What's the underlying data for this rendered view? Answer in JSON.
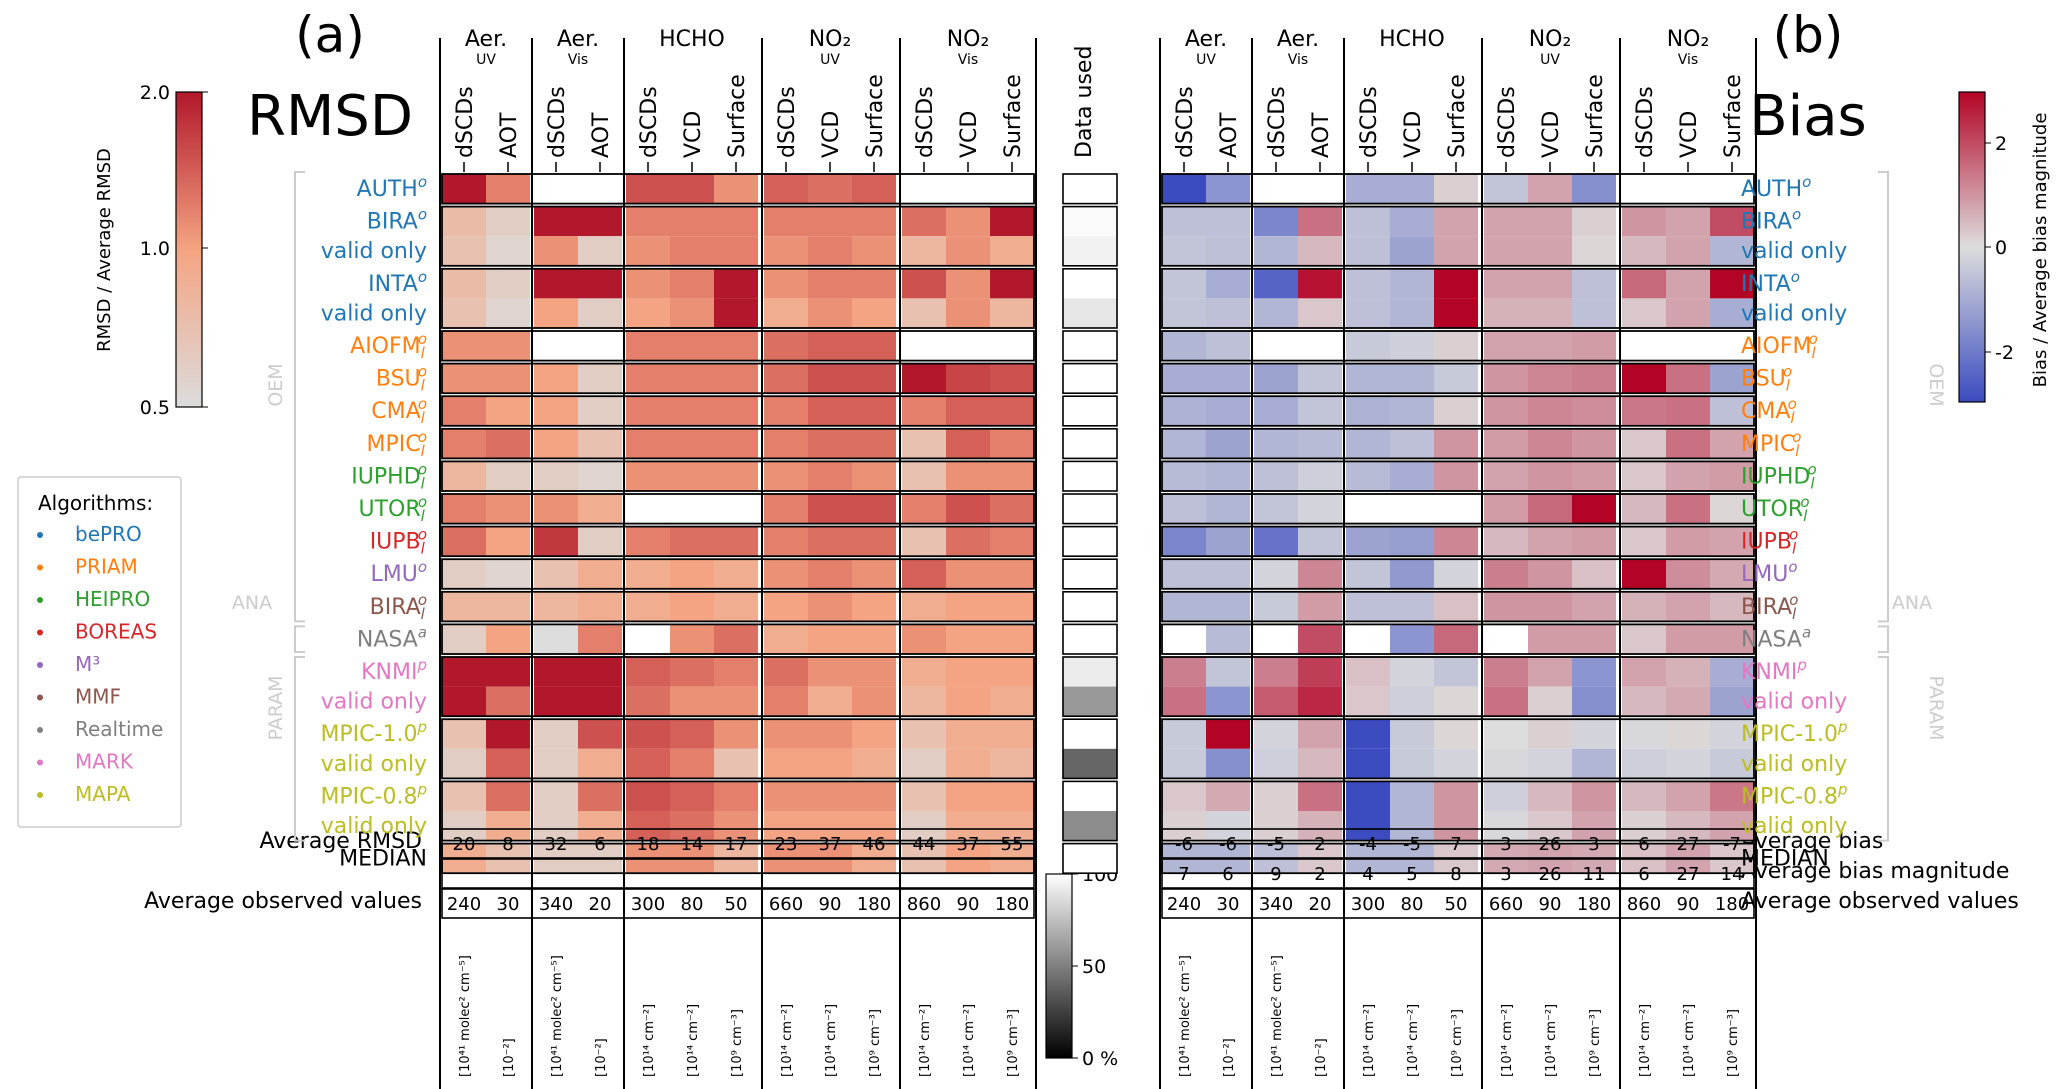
{
  "panels": {
    "a": {
      "letter": "(a)",
      "title": "RMSD"
    },
    "b": {
      "letter": "(b)",
      "title": "Bias"
    }
  },
  "data_used_header": "Data used",
  "groups": [
    {
      "name": "Aer.",
      "sub": "UV",
      "cols": [
        "dSCDs",
        "AOT"
      ],
      "units": [
        "[10⁴¹ molec² cm⁻⁵]",
        "[10⁻²]"
      ]
    },
    {
      "name": "Aer.",
      "sub": "Vis",
      "cols": [
        "dSCDs",
        "AOT"
      ],
      "units": [
        "[10⁴¹ molec² cm⁻⁵]",
        "[10⁻²]"
      ]
    },
    {
      "name": "HCHO",
      "sub": "",
      "cols": [
        "dSCDs",
        "VCD",
        "Surface"
      ],
      "units": [
        "[10¹⁴ cm⁻²]",
        "[10¹⁴ cm⁻²]",
        "[10⁹ cm⁻³]"
      ]
    },
    {
      "name": "NO₂",
      "sub": "UV",
      "cols": [
        "dSCDs",
        "VCD",
        "Surface"
      ],
      "units": [
        "[10¹⁴ cm⁻²]",
        "[10¹⁴ cm⁻²]",
        "[10⁹ cm⁻³]"
      ]
    },
    {
      "name": "NO₂",
      "sub": "Vis",
      "cols": [
        "dSCDs",
        "VCD",
        "Surface"
      ],
      "units": [
        "[10¹⁴ cm⁻²]",
        "[10¹⁴ cm⁻²]",
        "[10⁹ cm⁻³]"
      ]
    }
  ],
  "rows": [
    {
      "label": "AUTH",
      "sup": "o",
      "sub": "",
      "color": "#1f77b4",
      "block": 0
    },
    {
      "label": "BIRA",
      "sup": "o",
      "sub": "",
      "color": "#1f77b4",
      "block": 1
    },
    {
      "label": "valid only",
      "sup": "",
      "sub": "",
      "color": "#1f77b4",
      "block": 1
    },
    {
      "label": "INTA",
      "sup": "o",
      "sub": "",
      "color": "#1f77b4",
      "block": 2
    },
    {
      "label": "valid only",
      "sup": "",
      "sub": "",
      "color": "#1f77b4",
      "block": 2
    },
    {
      "label": "AIOFM",
      "sup": "o",
      "sub": "l",
      "color": "#ff7f0e",
      "block": 3
    },
    {
      "label": "BSU",
      "sup": "o",
      "sub": "l",
      "color": "#ff7f0e",
      "block": 4
    },
    {
      "label": "CMA",
      "sup": "o",
      "sub": "l",
      "color": "#ff7f0e",
      "block": 5
    },
    {
      "label": "MPIC",
      "sup": "o",
      "sub": "l",
      "color": "#ff7f0e",
      "block": 6
    },
    {
      "label": "IUPHD",
      "sup": "o",
      "sub": "l",
      "color": "#2ca02c",
      "block": 7
    },
    {
      "label": "UTOR",
      "sup": "o",
      "sub": "l",
      "color": "#2ca02c",
      "block": 8
    },
    {
      "label": "IUPB",
      "sup": "o",
      "sub": "l",
      "color": "#d62728",
      "block": 9
    },
    {
      "label": "LMU",
      "sup": "o",
      "sub": "",
      "color": "#9467bd",
      "block": 10
    },
    {
      "label": "BIRA",
      "sup": "o",
      "sub": "l",
      "color": "#8c564b",
      "block": 11
    },
    {
      "label": "NASA",
      "sup": "a",
      "sub": "",
      "color": "#7f7f7f",
      "block": 12
    },
    {
      "label": "KNMI",
      "sup": "p",
      "sub": "",
      "color": "#e377c2",
      "block": 13
    },
    {
      "label": "valid only",
      "sup": "",
      "sub": "",
      "color": "#e377c2",
      "block": 13
    },
    {
      "label": "MPIC-1.0",
      "sup": "p",
      "sub": "",
      "color": "#bcbd22",
      "block": 14
    },
    {
      "label": "valid only",
      "sup": "",
      "sub": "",
      "color": "#bcbd22",
      "block": 14
    },
    {
      "label": "MPIC-0.8",
      "sup": "p",
      "sub": "",
      "color": "#bcbd22",
      "block": 15
    },
    {
      "label": "valid only",
      "sup": "",
      "sub": "",
      "color": "#bcbd22",
      "block": 15
    },
    {
      "label": "MEDIAN",
      "sup": "",
      "sub": "",
      "color": "#000000",
      "block": 16
    }
  ],
  "bracket_labels": {
    "oem": "OEM",
    "ana": "ANA",
    "param": "PARAM"
  },
  "legend": {
    "title": "Algorithms:",
    "items": [
      {
        "name": "bePRO",
        "color": "#1f77b4"
      },
      {
        "name": "PRIAM",
        "color": "#ff7f0e"
      },
      {
        "name": "HEIPRO",
        "color": "#2ca02c"
      },
      {
        "name": "BOREAS",
        "color": "#d62728"
      },
      {
        "name": "M³",
        "color": "#9467bd"
      },
      {
        "name": "MMF",
        "color": "#8c564b"
      },
      {
        "name": "Realtime",
        "color": "#7f7f7f"
      },
      {
        "name": "MARK",
        "color": "#e377c2"
      },
      {
        "name": "MAPA",
        "color": "#bcbd22"
      }
    ]
  },
  "colorbars": {
    "rmsd": {
      "label": "RMSD / Average RMSD",
      "ticks": [
        "2.0",
        "1.0",
        "0.5"
      ],
      "low": "#dcdcdc",
      "high": "#b2182b"
    },
    "bias": {
      "label": "Bias / Average bias magnitude",
      "ticks": [
        "2",
        "0",
        "-2"
      ],
      "low": "#3b4cc0",
      "mid": "#dddddd",
      "high": "#b40426"
    },
    "data_used": {
      "ticks": [
        "100",
        "50",
        "0 %"
      ]
    }
  },
  "summary_rows": {
    "avg_rmsd_label": "Average RMSD",
    "avg_bias_label": "Average bias",
    "avg_bias_mag_label": "Average bias magnitude",
    "avg_obs_label": "Average observed values"
  },
  "chart_data": [
    {
      "type": "heatmap",
      "title": "RMSD",
      "columns": [
        "Aer. UV dSCDs",
        "Aer. UV AOT",
        "Aer. Vis dSCDs",
        "Aer. Vis AOT",
        "HCHO dSCDs",
        "HCHO VCD",
        "HCHO Surface",
        "NO2 UV dSCDs",
        "NO2 UV VCD",
        "NO2 UV Surface",
        "NO2 Vis dSCDs",
        "NO2 Vis VCD",
        "NO2 Vis Surface"
      ],
      "colorbar_label": "RMSD / Average RMSD",
      "color_range": [
        0.5,
        2.0
      ],
      "values": [
        [
          2.0,
          1.2,
          null,
          null,
          1.5,
          1.5,
          1.1,
          1.4,
          1.3,
          1.4,
          null,
          null,
          null
        ],
        [
          0.75,
          0.6,
          2.0,
          2.0,
          1.2,
          1.2,
          1.2,
          1.2,
          1.2,
          1.2,
          1.3,
          1.1,
          2.0
        ],
        [
          0.7,
          0.55,
          1.1,
          0.6,
          1.1,
          1.2,
          1.2,
          1.1,
          1.2,
          1.1,
          0.8,
          1.1,
          0.9
        ],
        [
          0.75,
          0.6,
          2.0,
          2.0,
          1.1,
          1.2,
          2.0,
          1.1,
          1.2,
          1.2,
          1.5,
          1.1,
          2.0
        ],
        [
          0.7,
          0.55,
          1.0,
          0.6,
          1.0,
          1.1,
          2.0,
          0.9,
          1.1,
          1.0,
          0.7,
          1.1,
          0.8
        ],
        [
          1.1,
          1.1,
          null,
          null,
          1.2,
          1.2,
          1.2,
          1.3,
          1.4,
          1.4,
          null,
          null,
          null
        ],
        [
          1.1,
          1.1,
          1.0,
          0.6,
          1.2,
          1.2,
          1.2,
          1.3,
          1.5,
          1.5,
          2.0,
          1.6,
          1.5
        ],
        [
          1.2,
          1.0,
          1.0,
          0.6,
          1.2,
          1.2,
          1.2,
          1.2,
          1.4,
          1.4,
          1.2,
          1.4,
          1.4
        ],
        [
          1.2,
          1.3,
          1.0,
          0.7,
          1.2,
          1.2,
          1.2,
          1.2,
          1.3,
          1.3,
          0.7,
          1.4,
          1.2
        ],
        [
          0.8,
          0.6,
          0.6,
          0.55,
          1.1,
          1.1,
          1.1,
          1.1,
          1.2,
          1.1,
          0.7,
          1.1,
          1.1
        ],
        [
          1.2,
          1.1,
          1.1,
          0.9,
          null,
          null,
          null,
          1.2,
          1.5,
          1.5,
          1.2,
          1.5,
          1.3
        ],
        [
          1.3,
          1.0,
          1.7,
          0.6,
          1.2,
          1.3,
          1.3,
          1.2,
          1.3,
          1.3,
          0.7,
          1.3,
          1.2
        ],
        [
          0.6,
          0.55,
          0.7,
          0.9,
          0.9,
          1.0,
          0.9,
          1.1,
          1.2,
          1.1,
          1.4,
          1.1,
          1.1
        ],
        [
          0.8,
          0.8,
          0.8,
          0.9,
          0.9,
          1.0,
          0.9,
          1.0,
          1.1,
          1.0,
          0.9,
          1.0,
          1.0
        ],
        [
          0.6,
          1.0,
          0.5,
          1.2,
          null,
          1.1,
          1.3,
          0.9,
          1.0,
          1.0,
          1.1,
          1.0,
          1.0
        ],
        [
          2.0,
          2.0,
          2.0,
          2.0,
          1.4,
          1.3,
          1.2,
          1.3,
          1.1,
          1.1,
          0.9,
          1.0,
          1.0
        ],
        [
          2.0,
          1.3,
          2.0,
          2.0,
          1.3,
          1.1,
          1.1,
          1.2,
          0.9,
          1.1,
          0.8,
          1.0,
          0.9
        ],
        [
          0.7,
          2.0,
          0.6,
          1.5,
          1.5,
          1.4,
          1.1,
          1.1,
          1.1,
          1.0,
          0.7,
          0.9,
          0.9
        ],
        [
          0.6,
          1.4,
          0.6,
          0.9,
          1.4,
          1.2,
          0.7,
          1.0,
          1.0,
          0.9,
          0.6,
          0.9,
          0.8
        ],
        [
          0.7,
          1.3,
          0.6,
          1.3,
          1.5,
          1.4,
          1.2,
          1.1,
          1.1,
          1.1,
          0.7,
          1.0,
          1.0
        ],
        [
          0.6,
          0.9,
          0.6,
          0.9,
          1.4,
          1.3,
          1.1,
          1.0,
          1.0,
          1.0,
          0.6,
          0.9,
          0.9
        ],
        [
          0.9,
          0.7,
          0.6,
          0.6,
          1.1,
          1.1,
          0.8,
          1.1,
          1.1,
          0.9,
          0.7,
          1.0,
          0.9
        ]
      ],
      "averages": [
        "20",
        "8",
        "32",
        "6",
        "18",
        "14",
        "17",
        "23",
        "37",
        "46",
        "44",
        "37",
        "55"
      ],
      "observed": [
        "240",
        "30",
        "340",
        "20",
        "300",
        "80",
        "50",
        "660",
        "90",
        "180",
        "860",
        "90",
        "180"
      ]
    },
    {
      "type": "heatmap",
      "title": "Bias",
      "columns": [
        "Aer. UV dSCDs",
        "Aer. UV AOT",
        "Aer. Vis dSCDs",
        "Aer. Vis AOT",
        "HCHO dSCDs",
        "HCHO VCD",
        "HCHO Surface",
        "NO2 UV dSCDs",
        "NO2 UV VCD",
        "NO2 UV Surface",
        "NO2 Vis dSCDs",
        "NO2 Vis VCD",
        "NO2 Vis Surface"
      ],
      "colorbar_label": "Bias / Average bias magnitude",
      "color_range": [
        -3,
        3
      ],
      "values": [
        [
          -3.0,
          -1.5,
          null,
          null,
          -1.0,
          -1.0,
          0.2,
          -0.5,
          0.8,
          -1.6,
          null,
          null,
          null
        ],
        [
          -0.6,
          -0.6,
          -1.8,
          1.5,
          -0.6,
          -1.0,
          0.8,
          0.8,
          0.8,
          0.2,
          1.0,
          0.8,
          2.0
        ],
        [
          -0.5,
          -0.6,
          -0.8,
          0.5,
          -0.6,
          -1.2,
          0.8,
          0.8,
          0.8,
          0.1,
          0.5,
          0.8,
          -0.8
        ],
        [
          -0.5,
          -1.0,
          -2.5,
          2.8,
          -0.6,
          -0.8,
          3.0,
          0.8,
          0.8,
          -0.6,
          1.6,
          0.8,
          3.0
        ],
        [
          -0.5,
          -0.6,
          -0.8,
          0.3,
          -0.6,
          -0.8,
          3.0,
          0.6,
          0.6,
          -0.6,
          0.3,
          0.8,
          -1.0
        ],
        [
          -0.8,
          -0.6,
          null,
          null,
          -0.4,
          -0.3,
          0.2,
          0.8,
          0.8,
          0.9,
          null,
          null,
          null
        ],
        [
          -1.0,
          -1.0,
          -1.2,
          -0.5,
          -0.8,
          -0.8,
          -0.4,
          1.0,
          1.2,
          1.3,
          3.0,
          1.5,
          -1.2
        ],
        [
          -0.9,
          -1.0,
          -1.0,
          -0.5,
          -0.9,
          -0.8,
          0.2,
          1.0,
          1.2,
          1.1,
          1.4,
          1.5,
          -0.6
        ],
        [
          -0.8,
          -1.2,
          -0.8,
          -0.7,
          -0.8,
          -0.6,
          1.0,
          0.9,
          1.2,
          1.0,
          0.3,
          1.5,
          0.8
        ],
        [
          -0.7,
          -0.8,
          -0.6,
          -0.3,
          -0.7,
          -1.0,
          1.0,
          0.8,
          1.0,
          0.9,
          0.3,
          0.8,
          0.9
        ],
        [
          -0.6,
          -0.8,
          -0.5,
          -0.2,
          null,
          null,
          null,
          0.9,
          1.6,
          3.0,
          0.5,
          1.5,
          0.1
        ],
        [
          -1.8,
          -1.2,
          -2.2,
          -0.5,
          -1.2,
          -1.3,
          1.2,
          0.5,
          0.8,
          0.9,
          0.3,
          0.9,
          0.8
        ],
        [
          -0.6,
          -0.6,
          -0.2,
          1.2,
          -0.5,
          -1.4,
          -0.2,
          1.3,
          1.0,
          0.4,
          3.0,
          1.1,
          0.7
        ],
        [
          -0.8,
          -0.8,
          -0.4,
          0.9,
          -0.6,
          -0.6,
          0.4,
          1.0,
          1.0,
          0.8,
          0.6,
          0.8,
          0.5
        ],
        [
          null,
          -0.7,
          null,
          2.0,
          null,
          -1.5,
          1.6,
          null,
          0.9,
          0.9,
          0.3,
          0.9,
          0.9
        ],
        [
          1.3,
          -0.5,
          1.3,
          2.2,
          0.4,
          -0.2,
          -0.5,
          1.3,
          0.8,
          -1.5,
          0.8,
          0.6,
          -1.0
        ],
        [
          1.5,
          -1.5,
          1.8,
          2.5,
          0.3,
          -0.3,
          0.1,
          1.5,
          0.2,
          -1.6,
          0.5,
          0.7,
          -1.2
        ],
        [
          -0.4,
          3.0,
          -0.2,
          0.8,
          -3.0,
          -0.4,
          0.1,
          0.0,
          0.2,
          -0.2,
          -0.1,
          0.1,
          -0.2
        ],
        [
          -0.4,
          -1.6,
          -0.3,
          0.5,
          -3.0,
          -0.4,
          -0.2,
          -0.1,
          -0.2,
          -0.8,
          -0.3,
          -0.2,
          -0.4
        ],
        [
          0.3,
          0.7,
          0.2,
          1.5,
          -3.0,
          -0.8,
          1.0,
          -0.3,
          0.5,
          1.0,
          0.5,
          0.8,
          1.4
        ],
        [
          0.2,
          -0.2,
          0.2,
          0.6,
          -3.0,
          -0.8,
          1.0,
          -0.1,
          0.3,
          0.8,
          0.2,
          0.5,
          0.8
        ],
        [
          -0.8,
          -0.8,
          -0.6,
          0.3,
          -0.8,
          -0.8,
          0.3,
          0.7,
          0.8,
          0.7,
          0.4,
          0.8,
          0.3
        ]
      ],
      "averages": [
        "-6",
        "-6",
        "-5",
        "2",
        "-4",
        "-5",
        "7",
        "3",
        "26",
        "3",
        "6",
        "27",
        "-7"
      ],
      "bias_magnitude": [
        "7",
        "6",
        "9",
        "2",
        "4",
        "5",
        "8",
        "3",
        "26",
        "11",
        "6",
        "27",
        "14"
      ],
      "observed": [
        "240",
        "30",
        "340",
        "20",
        "300",
        "80",
        "50",
        "660",
        "90",
        "180",
        "860",
        "90",
        "180"
      ]
    },
    {
      "type": "heatmap",
      "title": "Data used",
      "colorbar_ticks": [
        "100",
        "50",
        "0 %"
      ],
      "blocks": [
        100,
        98,
        95,
        100,
        90,
        100,
        100,
        100,
        100,
        100,
        100,
        100,
        100,
        100,
        100,
        92,
        60,
        100,
        40,
        100,
        55,
        100
      ]
    }
  ]
}
